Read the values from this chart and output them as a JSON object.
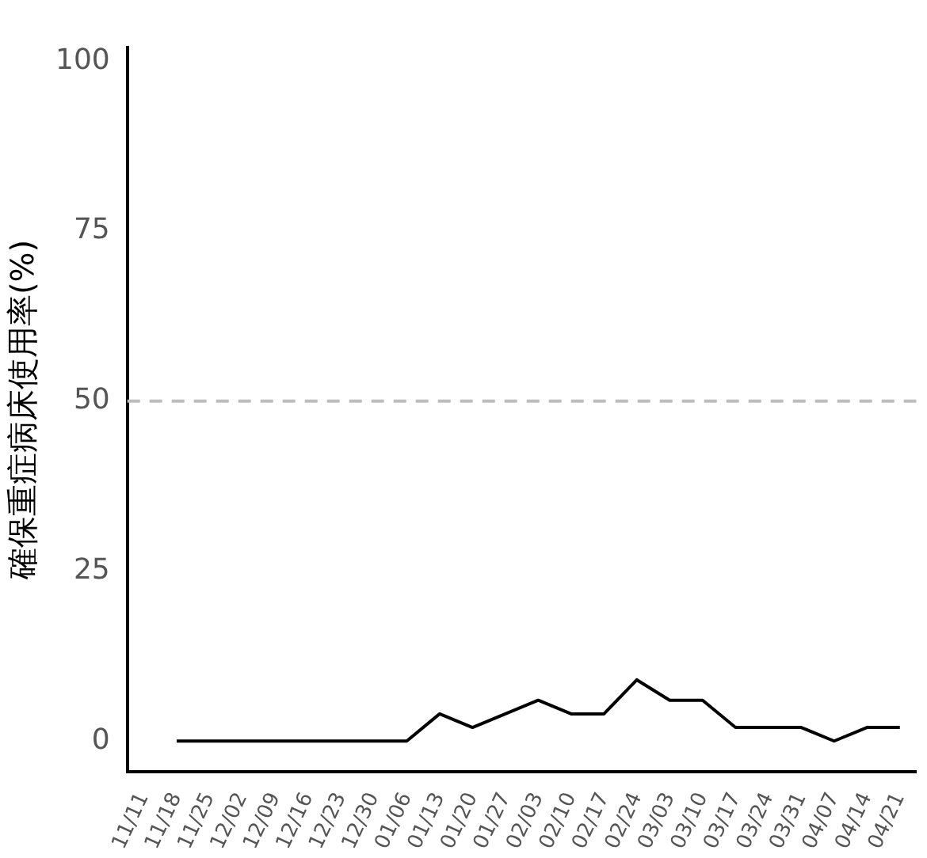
{
  "chart_data": {
    "type": "line",
    "ylabel": "確保重症病床使用率(%)",
    "categories": [
      "11/11",
      "11/18",
      "11/25",
      "12/02",
      "12/09",
      "12/16",
      "12/23",
      "12/30",
      "01/06",
      "01/13",
      "01/20",
      "01/27",
      "02/03",
      "02/10",
      "02/17",
      "02/24",
      "03/03",
      "03/10",
      "03/17",
      "03/24",
      "03/31",
      "04/07",
      "04/14",
      "04/21"
    ],
    "series": [
      {
        "color": "#000000",
        "values": [
          null,
          0,
          0,
          0,
          0,
          0,
          0,
          0,
          0,
          4,
          2,
          4,
          6,
          4,
          4,
          9,
          6,
          6,
          2,
          2,
          2,
          0,
          2,
          2
        ]
      }
    ],
    "ylim": [
      -4.5,
      102
    ],
    "yticks": [
      0,
      25,
      50,
      75,
      100
    ],
    "grid": false,
    "legend": false,
    "marker": "none",
    "line_style": "solid",
    "ref_lines": [
      {
        "axis": "y",
        "value": 50,
        "color": "#bdbdbd",
        "line_style": "dashed"
      }
    ]
  }
}
